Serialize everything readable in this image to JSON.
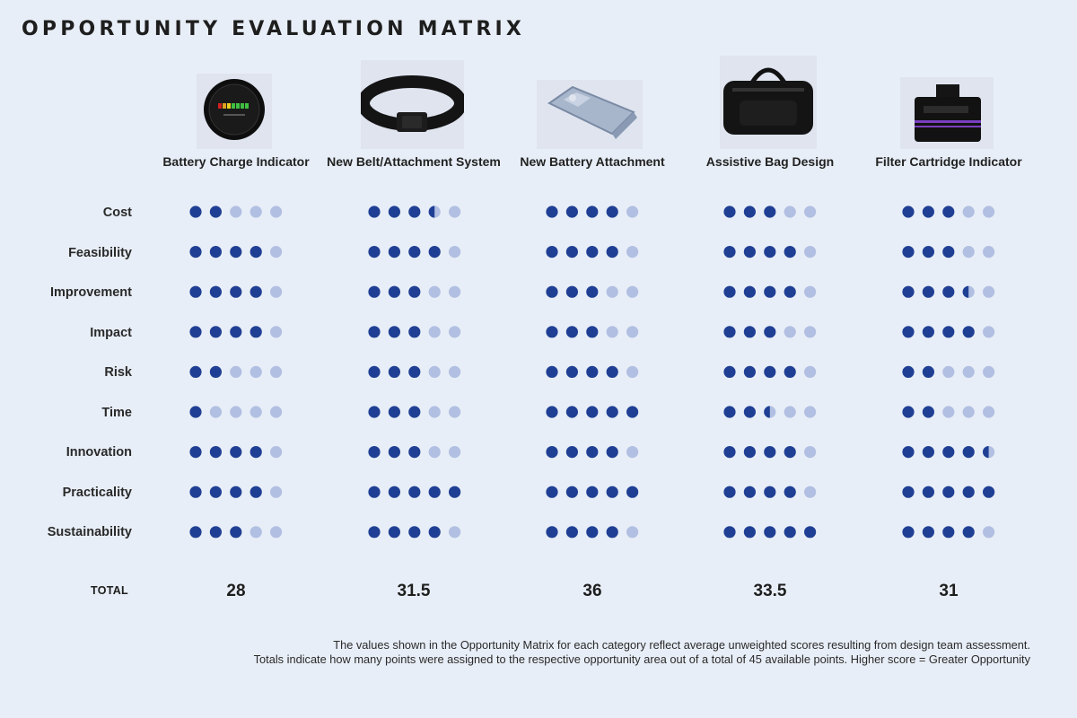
{
  "title": "OPPORTUNITY EVALUATION MATRIX",
  "columns": [
    {
      "label": "Battery Charge Indicator",
      "icon": "battery-gauge-icon"
    },
    {
      "label": "New Belt/Attachment System",
      "icon": "belt-icon"
    },
    {
      "label": "New Battery Attachment",
      "icon": "metal-clip-icon"
    },
    {
      "label": "Assistive Bag Design",
      "icon": "duffel-bag-icon"
    },
    {
      "label": "Filter Cartridge Indicator",
      "icon": "filter-cartridge-icon"
    }
  ],
  "total_label": "TOTAL",
  "footnote": {
    "line1": "The values shown in the Opportunity Matrix for each category reflect average unweighted scores resulting from design team assessment.",
    "line2": "Totals indicate how many points were assigned to the respective opportunity area out of a total of 45 available points. Higher score = Greater Opportunity"
  },
  "colors": {
    "filled": "#1f3f94",
    "empty": "#b1bfe2",
    "background": "#e8eef7"
  },
  "chart_data": {
    "type": "table",
    "title": "OPPORTUNITY EVALUATION MATRIX",
    "max_score": 5,
    "categories": [
      "Cost",
      "Feasibility",
      "Improvement",
      "Impact",
      "Risk",
      "Time",
      "Innovation",
      "Practicality",
      "Sustainability"
    ],
    "series": [
      {
        "name": "Battery Charge Indicator",
        "values": [
          2,
          4,
          4,
          4,
          2,
          1,
          4,
          4,
          3
        ],
        "total": "28"
      },
      {
        "name": "New Belt/Attachment System",
        "values": [
          3.5,
          4,
          3,
          3,
          3,
          3,
          3,
          5,
          4
        ],
        "total": "31.5"
      },
      {
        "name": "New Battery Attachment",
        "values": [
          4,
          4,
          3,
          3,
          4,
          5,
          4,
          5,
          4
        ],
        "total": "36"
      },
      {
        "name": "Assistive Bag Design",
        "values": [
          3,
          4,
          4,
          3,
          4,
          2.5,
          4,
          4,
          5
        ],
        "total": "33.5"
      },
      {
        "name": "Filter Cartridge Indicator",
        "values": [
          3,
          3,
          3.5,
          4,
          2,
          2,
          4.5,
          5,
          4
        ],
        "total": "31"
      }
    ]
  }
}
